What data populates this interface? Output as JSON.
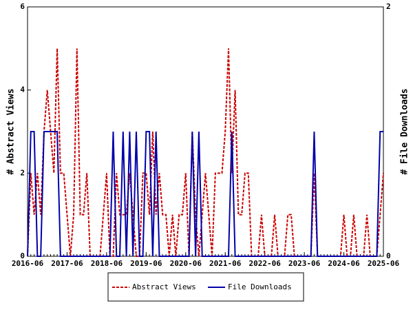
{
  "chart_data": {
    "type": "line",
    "x": [
      "2016-06",
      "2016-07",
      "2016-08",
      "2016-09",
      "2016-10",
      "2016-11",
      "2016-12",
      "2017-01",
      "2017-02",
      "2017-03",
      "2017-04",
      "2017-05",
      "2017-06",
      "2017-07",
      "2017-08",
      "2017-09",
      "2017-10",
      "2017-11",
      "2017-12",
      "2018-01",
      "2018-02",
      "2018-03",
      "2018-04",
      "2018-05",
      "2018-06",
      "2018-07",
      "2018-08",
      "2018-09",
      "2018-10",
      "2018-11",
      "2018-12",
      "2019-01",
      "2019-02",
      "2019-03",
      "2019-04",
      "2019-05",
      "2019-06",
      "2019-07",
      "2019-08",
      "2019-09",
      "2019-10",
      "2019-11",
      "2019-12",
      "2020-01",
      "2020-02",
      "2020-03",
      "2020-04",
      "2020-05",
      "2020-06",
      "2020-07",
      "2020-08",
      "2020-09",
      "2020-10",
      "2020-11",
      "2020-12",
      "2021-01",
      "2021-02",
      "2021-03",
      "2021-04",
      "2021-05",
      "2021-06",
      "2021-07",
      "2021-08",
      "2021-09",
      "2021-10",
      "2021-11",
      "2021-12",
      "2022-01",
      "2022-02",
      "2022-03",
      "2022-04",
      "2022-05",
      "2022-06",
      "2022-07",
      "2022-08",
      "2022-09",
      "2022-10",
      "2022-11",
      "2022-12",
      "2023-01",
      "2023-02",
      "2023-03",
      "2023-04",
      "2023-05",
      "2023-06",
      "2023-07",
      "2023-08",
      "2023-09",
      "2023-10",
      "2023-11",
      "2023-12",
      "2024-01",
      "2024-02",
      "2024-03",
      "2024-04",
      "2024-05",
      "2024-06",
      "2024-07",
      "2024-08",
      "2024-09",
      "2024-10",
      "2024-11",
      "2024-12",
      "2025-01",
      "2025-02",
      "2025-03",
      "2025-04",
      "2025-05",
      "2025-06"
    ],
    "xticks": [
      "2016-06",
      "2017-06",
      "2018-06",
      "2019-06",
      "2020-06",
      "2021-06",
      "2022-06",
      "2023-06",
      "2024-06",
      "2025-06"
    ],
    "series": [
      {
        "name": "Abstract Views",
        "color": "#cc0000",
        "axis": "y",
        "values": [
          0,
          2,
          1,
          2,
          1,
          3,
          4,
          3,
          2,
          5,
          2,
          2,
          1,
          0,
          1,
          5,
          1,
          1,
          2,
          0,
          0,
          0,
          0,
          1,
          2,
          0,
          0,
          2,
          1,
          1,
          1,
          2,
          1,
          0,
          0,
          2,
          2,
          1,
          3,
          1,
          2,
          1,
          1,
          0,
          1,
          0,
          1,
          1,
          2,
          0,
          3,
          1,
          0,
          1,
          2,
          1,
          0,
          2,
          2,
          2,
          3,
          5,
          2,
          4,
          1,
          1,
          2,
          2,
          0,
          0,
          0,
          1,
          0,
          0,
          0,
          1,
          0,
          0,
          0,
          1,
          1,
          0,
          0,
          0,
          0,
          0,
          0,
          2,
          0,
          0,
          0,
          0,
          0,
          0,
          0,
          0,
          1,
          0,
          0,
          1,
          0,
          0,
          0,
          1,
          0,
          0,
          0,
          1,
          2
        ]
      },
      {
        "name": "File Downloads",
        "color": "#0000aa",
        "axis": "y2",
        "values": [
          0,
          1,
          1,
          0,
          0,
          1,
          1,
          1,
          1,
          1,
          0,
          0,
          0,
          0,
          0,
          0,
          0,
          0,
          0,
          0,
          0,
          0,
          0,
          0,
          0,
          0,
          1,
          0,
          0,
          1,
          0,
          1,
          0,
          1,
          0,
          0,
          1,
          1,
          0,
          1,
          0,
          0,
          0,
          0,
          0,
          0,
          0,
          0,
          0,
          0,
          1,
          0,
          1,
          0,
          0,
          0,
          0,
          0,
          0,
          0,
          0,
          0,
          1,
          0,
          0,
          0,
          0,
          0,
          0,
          0,
          0,
          0,
          0,
          0,
          0,
          0,
          0,
          0,
          0,
          0,
          0,
          0,
          0,
          0,
          0,
          0,
          0,
          1,
          0,
          0,
          0,
          0,
          0,
          0,
          0,
          0,
          0,
          0,
          0,
          0,
          0,
          0,
          0,
          0,
          0,
          0,
          0,
          1,
          1
        ]
      }
    ],
    "ylabel": "# Abstract Views",
    "y2label": "# File Downloads",
    "ylim": [
      0,
      6
    ],
    "yticks": [
      0,
      2,
      4,
      6
    ],
    "y2lim": [
      0,
      2
    ],
    "y2ticks": [
      0,
      2
    ]
  }
}
